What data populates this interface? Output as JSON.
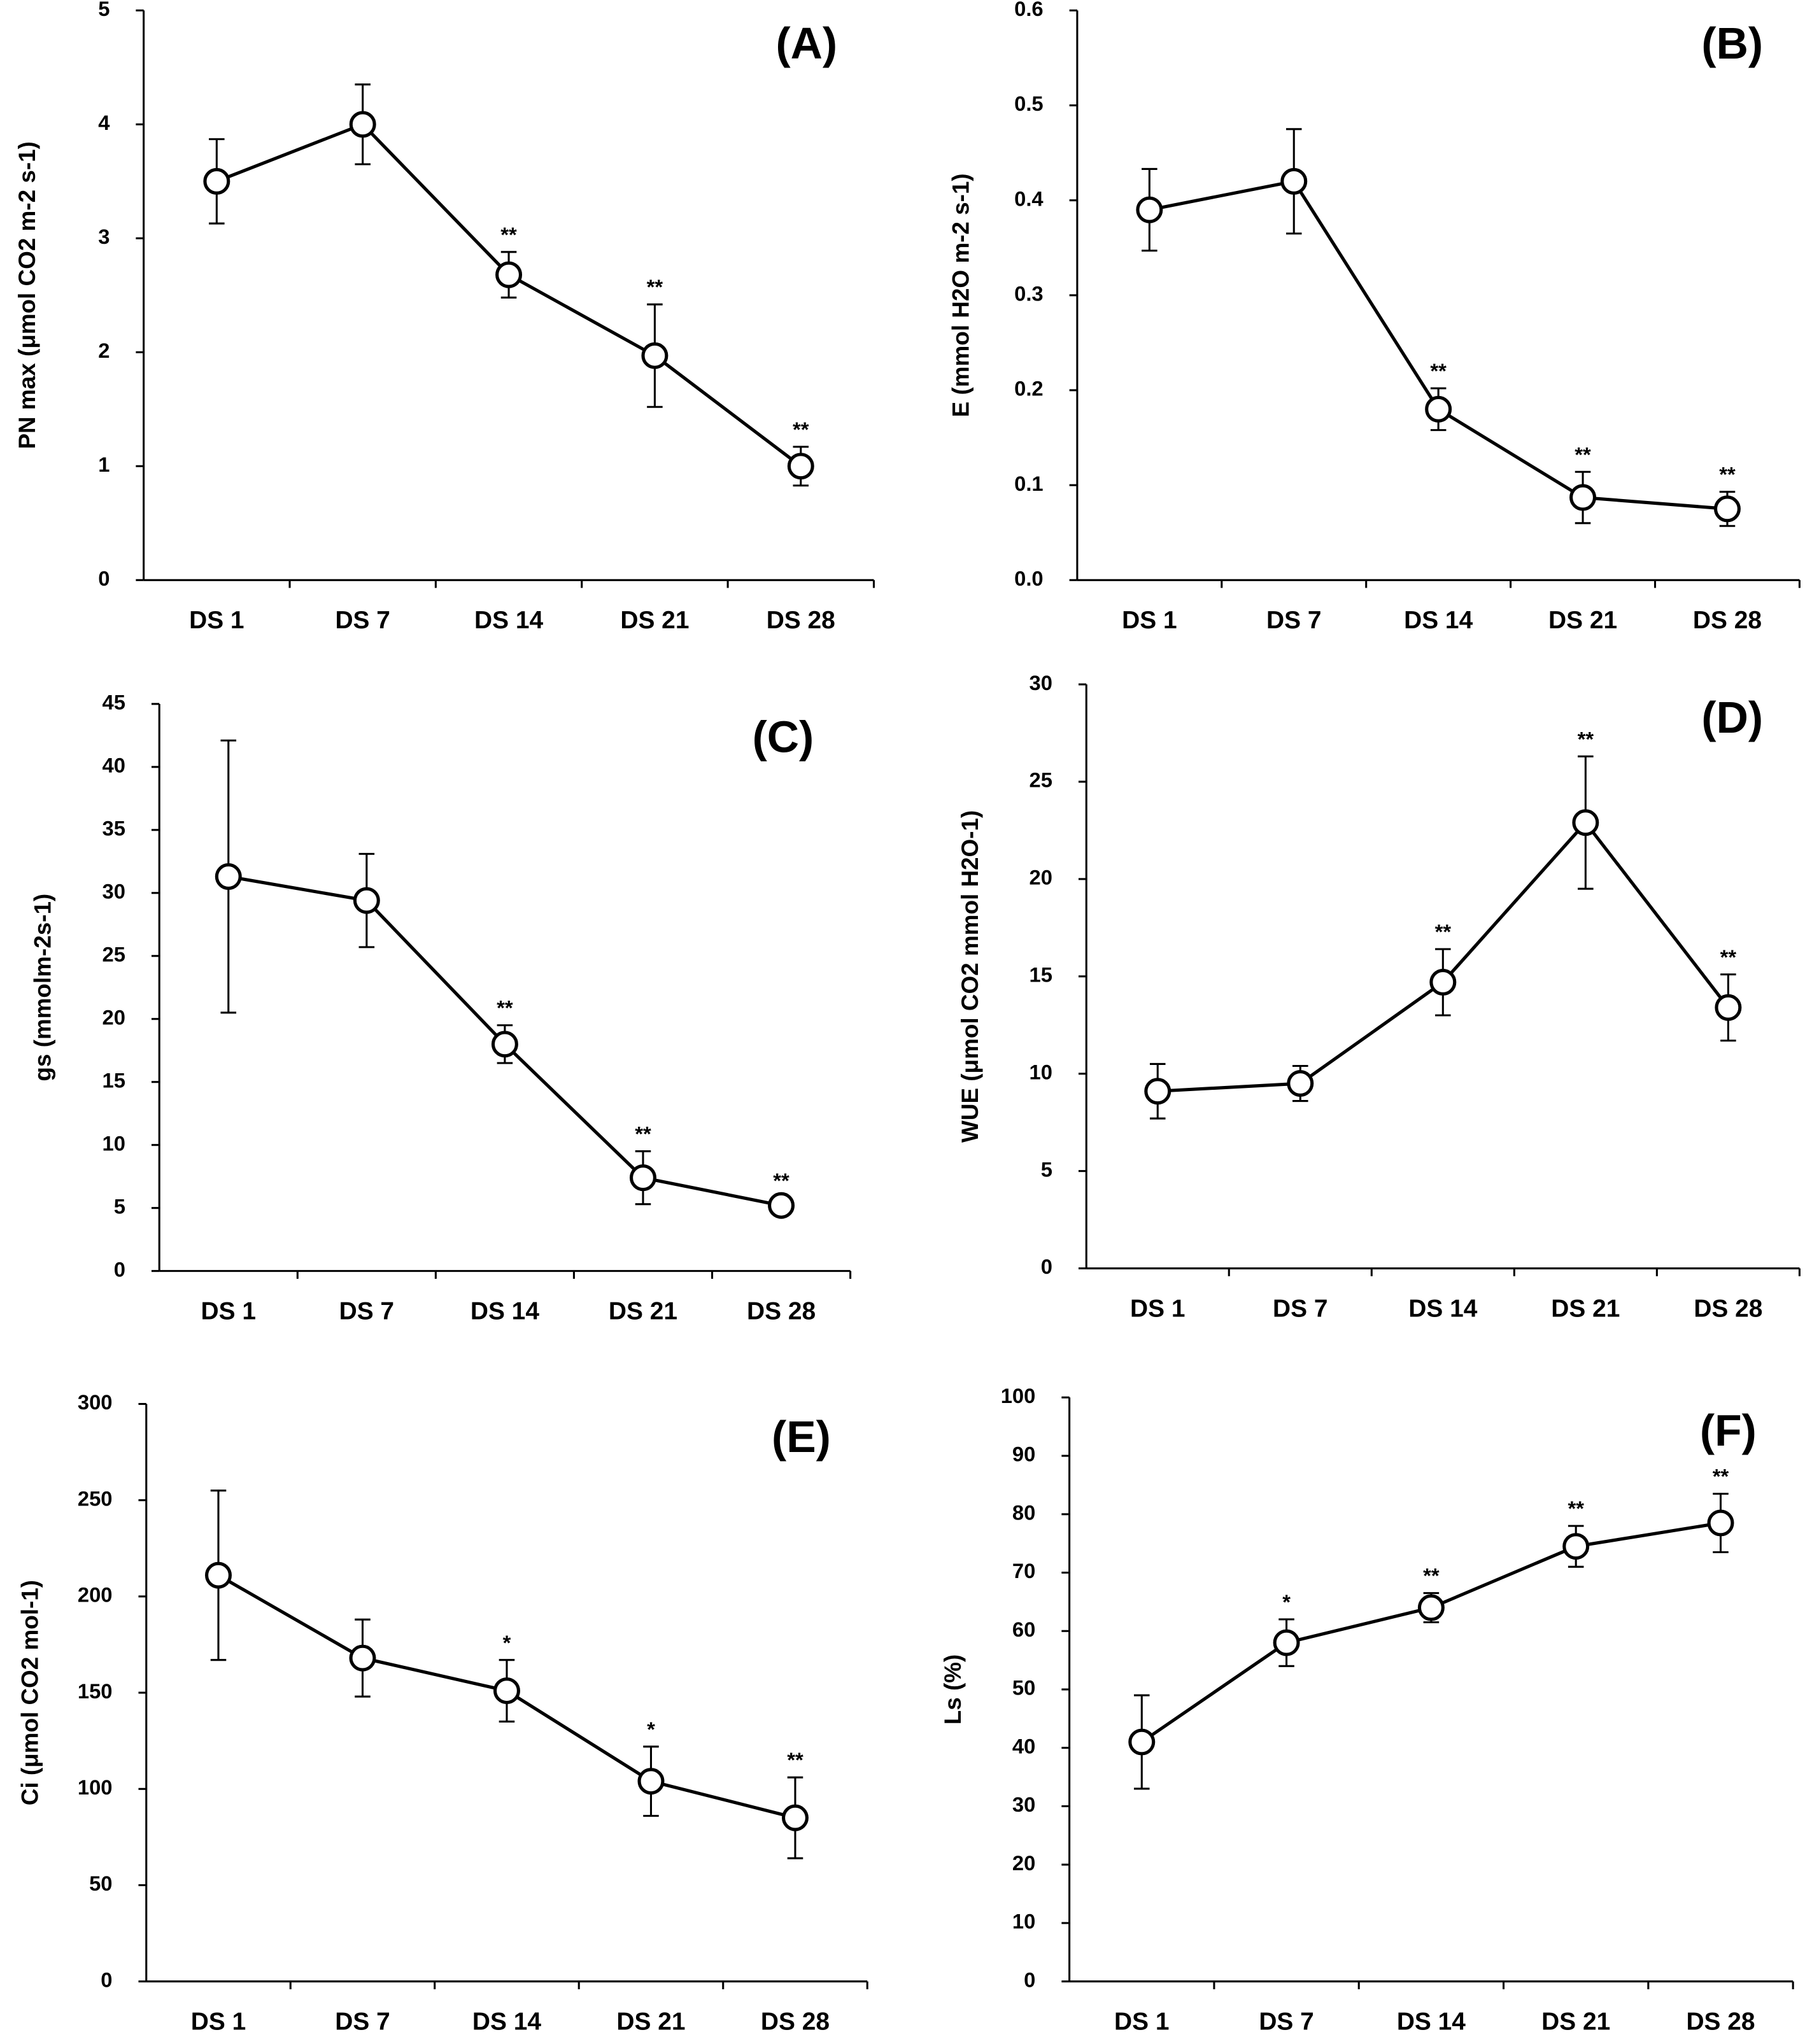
{
  "chart_data": [
    {
      "type": "line",
      "panel": "(A)",
      "ylabel": "PN max (μmol CO2 m-2 s-1)",
      "categories": [
        "DS 1",
        "DS 7",
        "DS 14",
        "DS 21",
        "DS 28"
      ],
      "series": [
        {
          "color": "#000000",
          "values": [
            3.5,
            4.0,
            2.68,
            1.97,
            1.0
          ],
          "errors": [
            0.37,
            0.35,
            0.2,
            0.45,
            0.17
          ],
          "annotations": [
            null,
            null,
            "**",
            "**",
            "**"
          ]
        }
      ],
      "ylim": [
        0,
        5
      ],
      "yticks": [
        0,
        1,
        2,
        3,
        4,
        5
      ]
    },
    {
      "type": "line",
      "panel": "(B)",
      "ylabel": "E (mmol H2O m-2 s-1)",
      "categories": [
        "DS 1",
        "DS 7",
        "DS 14",
        "DS 21",
        "DS 28"
      ],
      "series": [
        {
          "color": "#000000",
          "values": [
            0.39,
            0.42,
            0.18,
            0.087,
            0.075
          ],
          "errors": [
            0.043,
            0.055,
            0.022,
            0.027,
            0.018
          ],
          "annotations": [
            null,
            null,
            "**",
            "**",
            "**"
          ]
        }
      ],
      "ylim": [
        0,
        0.6
      ],
      "yticks": [
        {
          "value": 0,
          "label": "0.0"
        },
        0.1,
        0.2,
        0.3,
        0.4,
        0.5,
        0.6
      ]
    },
    {
      "type": "line",
      "panel": "(C)",
      "ylabel": "gs (mmolm-2s-1)",
      "categories": [
        "DS 1",
        "DS 7",
        "DS 14",
        "DS 21",
        "DS 28"
      ],
      "series": [
        {
          "color": "#000000",
          "values": [
            31.3,
            29.4,
            18.0,
            7.4,
            5.2
          ],
          "errors": [
            10.8,
            3.7,
            1.5,
            2.1,
            0.6
          ],
          "annotations": [
            null,
            null,
            "**",
            "**",
            "**"
          ]
        }
      ],
      "ylim": [
        0,
        45
      ],
      "yticks": [
        0,
        5,
        10,
        15,
        20,
        25,
        30,
        35,
        40,
        45
      ]
    },
    {
      "type": "line",
      "panel": "(D)",
      "ylabel": "WUE (μmol CO2 mmol H2O-1)",
      "categories": [
        "DS 1",
        "DS 7",
        "DS 14",
        "DS 21",
        "DS 28"
      ],
      "series": [
        {
          "color": "#000000",
          "values": [
            9.1,
            9.5,
            14.7,
            22.9,
            13.4
          ],
          "errors": [
            1.4,
            0.9,
            1.7,
            3.4,
            1.7
          ],
          "annotations": [
            null,
            null,
            "**",
            "**",
            "**"
          ]
        }
      ],
      "ylim": [
        0,
        30
      ],
      "yticks": [
        0,
        5,
        10,
        15,
        20,
        25,
        30
      ]
    },
    {
      "type": "line",
      "panel": "(E)",
      "ylabel": "Ci (μmol CO2 mol-1)",
      "categories": [
        "DS 1",
        "DS 7",
        "DS 14",
        "DS 21",
        "DS 28"
      ],
      "series": [
        {
          "color": "#000000",
          "values": [
            211,
            168,
            151,
            104,
            85
          ],
          "errors": [
            44,
            20,
            16,
            18,
            21
          ],
          "annotations": [
            null,
            null,
            "*",
            "*",
            "**"
          ]
        }
      ],
      "ylim": [
        0,
        300
      ],
      "yticks": [
        0,
        50,
        100,
        150,
        200,
        250,
        300
      ]
    },
    {
      "type": "line",
      "panel": "(F)",
      "ylabel": "Ls (%)",
      "categories": [
        "DS 1",
        "DS 7",
        "DS 14",
        "DS 21",
        "DS 28"
      ],
      "series": [
        {
          "color": "#000000",
          "values": [
            41,
            58,
            64,
            74.5,
            78.5
          ],
          "errors": [
            8,
            4,
            2.5,
            3.5,
            5
          ],
          "annotations": [
            null,
            "*",
            "**",
            "**",
            "**"
          ]
        }
      ],
      "ylim": [
        0,
        100
      ],
      "yticks": [
        0,
        10,
        20,
        30,
        40,
        50,
        60,
        70,
        80,
        90,
        100
      ]
    }
  ]
}
